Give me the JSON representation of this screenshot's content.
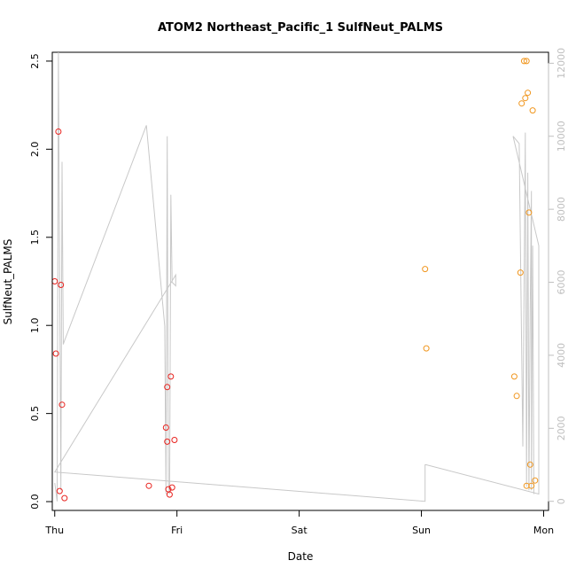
{
  "chart_data": {
    "type": "scatter",
    "title": "ATOM2 Northeast_Pacific_1 SulfNeut_PALMS",
    "xlabel": "Date",
    "ylabel": "SulfNeut_PALMS",
    "x_ticks": [
      "Thu",
      "Fri",
      "Sat",
      "Sun",
      "Mon"
    ],
    "xlim": [
      -0.02,
      4.04
    ],
    "ylim": [
      -0.05,
      2.55
    ],
    "y_ticks": [
      "0.0",
      "0.5",
      "1.0",
      "1.5",
      "2.0",
      "2.5"
    ],
    "y2lim": [
      -250,
      12300
    ],
    "y2_ticks": [
      "0",
      "2000",
      "4000",
      "6000",
      "8000",
      "10000",
      "12000"
    ],
    "grid": false,
    "colors": {
      "series1": "#e8231f",
      "series2": "#f0961e",
      "altitude": "#c8c8c8"
    },
    "series": [
      {
        "color_key": "series1",
        "x": [
          0.0,
          0.01,
          0.03,
          0.04,
          0.05,
          0.06,
          0.08,
          0.77,
          0.91,
          0.92,
          0.92,
          0.93,
          0.94,
          0.95,
          0.96,
          0.98
        ],
        "y": [
          1.25,
          0.84,
          2.1,
          0.06,
          1.23,
          0.55,
          0.02,
          0.09,
          0.42,
          0.34,
          0.65,
          0.07,
          0.04,
          0.71,
          0.08,
          0.35
        ]
      },
      {
        "color_key": "series2",
        "x": [
          3.03,
          3.04,
          3.76,
          3.78,
          3.81,
          3.82,
          3.84,
          3.85,
          3.86,
          3.86,
          3.87,
          3.88,
          3.89,
          3.9,
          3.91,
          3.93
        ],
        "y": [
          1.32,
          0.87,
          0.71,
          0.6,
          1.3,
          2.26,
          2.5,
          2.29,
          2.5,
          0.09,
          2.32,
          1.64,
          0.21,
          0.09,
          2.22,
          0.12
        ]
      }
    ],
    "altitude": {
      "x": [
        0.0,
        0.02,
        0.03,
        0.05,
        0.06,
        0.07,
        0.08,
        0.75,
        0.9,
        0.91,
        0.92,
        0.93,
        0.94,
        0.95,
        0.96,
        0.99,
        0.99,
        0.0,
        3.03,
        3.03,
        3.04,
        3.96,
        3.96,
        3.75,
        3.8,
        3.83,
        3.85,
        3.85,
        3.86,
        3.87,
        3.88,
        3.89,
        3.9,
        3.9,
        3.91,
        3.92,
        3.92
      ],
      "y": [
        500,
        0,
        12300,
        300,
        9300,
        4300,
        4400,
        10300,
        4800,
        200,
        10000,
        500,
        200,
        8400,
        6000,
        5900,
        6200,
        800,
        0,
        1000,
        1000,
        200,
        7000,
        10000,
        9800,
        1500,
        10100,
        9700,
        400,
        9000,
        300,
        5200,
        8500,
        300,
        7000,
        400,
        200
      ]
    }
  }
}
